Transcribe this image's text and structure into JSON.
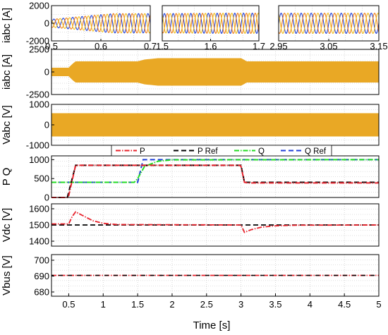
{
  "colors": {
    "phase_a": "#1f3fd8",
    "phase_b": "#ee7d1a",
    "phase_c": "#f2bf1e",
    "abc_fill": "#e9a825",
    "P": "#e8202a",
    "P_ref": "#000000",
    "Q": "#22dd22",
    "Q_ref": "#1f3fd8",
    "grid": "#bdbdbd"
  },
  "xlabel": "Time [s]",
  "chart_data": [
    {
      "type": "line",
      "ylabel": "iabc [A]",
      "ylim": [
        -2000,
        2000
      ],
      "yticks": [
        "2000",
        "0",
        "-2000"
      ],
      "grid": true,
      "insets": [
        {
          "xlim": [
            0.5,
            0.71
          ],
          "xticks": [
            "0.5",
            "0.6",
            "0.7"
          ],
          "amplitude_start": 450,
          "amplitude_end": 1100
        },
        {
          "xlim": [
            1.5,
            1.72
          ],
          "xticks": [
            "1.5",
            "1.6",
            "1.7"
          ],
          "amplitude_start": 1100,
          "amplitude_end": 1150
        },
        {
          "xlim": [
            2.95,
            3.15
          ],
          "xticks": [
            "2.95",
            "3.05",
            "3.15"
          ],
          "amplitude_start": 1150,
          "amplitude_end": 1150
        }
      ],
      "series": [
        {
          "name": "",
          "phase": 0
        },
        {
          "name": "",
          "phase": 120
        },
        {
          "name": "",
          "phase": 240
        }
      ]
    },
    {
      "type": "area",
      "ylabel": "iabc [A]",
      "ylim": [
        -2500,
        2500
      ],
      "yticks": [
        "2500",
        "0",
        "-2500"
      ],
      "xlim": [
        0.25,
        5
      ],
      "grid": true,
      "envelope_t": [
        0.25,
        0.5,
        0.56,
        0.6,
        1.5,
        1.6,
        1.8,
        3.0,
        3.05,
        3.08,
        5.0
      ],
      "envelope_amp": [
        450,
        450,
        900,
        1150,
        1150,
        1350,
        1500,
        1500,
        1300,
        1150,
        1150
      ]
    },
    {
      "type": "area",
      "ylabel": "Vabc [V]",
      "ylim": [
        -1000,
        1000
      ],
      "yticks": [
        "1000",
        "0",
        "-1000"
      ],
      "xlim": [
        0.25,
        5
      ],
      "grid": true,
      "envelope_t": [
        0.25,
        5.0
      ],
      "envelope_amp": [
        560,
        560
      ]
    },
    {
      "type": "line",
      "ylabel": "P Q",
      "ylim": [
        0,
        1100
      ],
      "yticks": [
        "1000",
        "500",
        "0"
      ],
      "xlim": [
        0.25,
        5
      ],
      "grid": true,
      "legend": "top",
      "series": [
        {
          "name": "P",
          "x": [
            0.25,
            0.48,
            0.5,
            0.6,
            2.98,
            3.0,
            3.05,
            3.1,
            5.0
          ],
          "y": [
            0,
            0,
            50,
            850,
            850,
            820,
            400,
            385,
            385
          ]
        },
        {
          "name": "P Ref",
          "x": [
            0.25,
            0.48,
            0.6,
            3.0,
            3.05,
            5.0
          ],
          "y": [
            0,
            0,
            850,
            850,
            400,
            400
          ]
        },
        {
          "name": "Q",
          "x": [
            0.25,
            1.45,
            1.5,
            1.6,
            1.8,
            2.0,
            5.0
          ],
          "y": [
            400,
            400,
            500,
            820,
            960,
            995,
            1000
          ]
        },
        {
          "name": "Q Ref",
          "x": [
            0.25,
            1.5,
            1.58,
            5.0
          ],
          "y": [
            400,
            400,
            1000,
            1000
          ]
        }
      ]
    },
    {
      "type": "line",
      "ylabel": "Vdc [V]",
      "ylim": [
        1400,
        1600
      ],
      "yticks": [
        "1600",
        "1500",
        "1400"
      ],
      "xlim": [
        0.25,
        5
      ],
      "grid": true,
      "series": [
        {
          "name": "",
          "x": [
            0.25,
            0.5,
            0.55,
            0.6,
            0.7,
            0.85,
            1.0,
            1.2,
            3.0,
            3.05,
            3.15,
            3.3,
            3.5,
            3.8,
            5.0
          ],
          "y": [
            1505,
            1505,
            1540,
            1562,
            1545,
            1520,
            1508,
            1502,
            1500,
            1465,
            1478,
            1490,
            1496,
            1499,
            1500
          ]
        },
        {
          "name": "",
          "x": [
            0.25,
            5.0
          ],
          "y": [
            1500,
            1500
          ]
        }
      ]
    },
    {
      "type": "line",
      "ylabel": "Vbus [V]",
      "ylim": [
        680,
        700
      ],
      "yticks": [
        "700",
        "690",
        "680"
      ],
      "xlim": [
        0.25,
        5
      ],
      "xticks": [
        "0.5",
        "1",
        "1.5",
        "2",
        "2.5",
        "3",
        "3.5",
        "4",
        "4.5",
        "5"
      ],
      "grid": true,
      "series": [
        {
          "name": "",
          "x": [
            0.25,
            5.0
          ],
          "y": [
            690,
            690
          ]
        },
        {
          "name": "",
          "x": [
            0.25,
            5.0
          ],
          "y": [
            690,
            690
          ]
        }
      ]
    }
  ]
}
